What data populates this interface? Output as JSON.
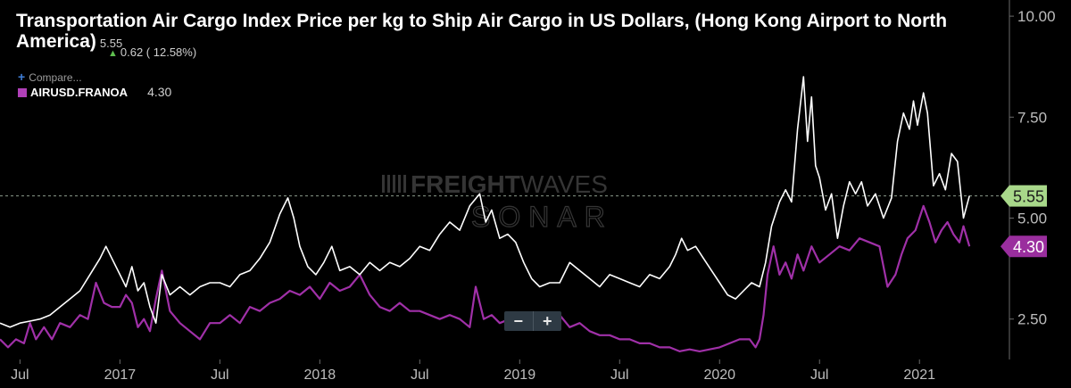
{
  "header": {
    "title": "Transportation Air Cargo Index Price per kg to Ship Air Cargo in US Dollars, (Hong Kong Airport to North America)",
    "current_value": "5.55",
    "change": "0.62 ( 12.58%)"
  },
  "legend": {
    "compare_label": "Compare...",
    "series_name": "AIRUSD.FRANOA",
    "series_value": "4.30"
  },
  "watermark": {
    "line1_bold": "FREIGHT",
    "line1_light": "WAVES",
    "line2": "SONAR"
  },
  "zoom": {
    "minus": "−",
    "plus": "+"
  },
  "colors": {
    "background": "#000000",
    "primary_line": "#ffffff",
    "secondary_line": "#a030a8",
    "primary_badge": "#a8d88a",
    "secondary_badge": "#9a2e9e"
  },
  "chart_data": {
    "type": "line",
    "x_range": [
      2016.4,
      2021.45
    ],
    "y_range": [
      1.5,
      10.4
    ],
    "y_ticks": [
      {
        "value": 2.5,
        "label": "2.50"
      },
      {
        "value": 5.0,
        "label": "5.00"
      },
      {
        "value": 7.5,
        "label": "7.50"
      },
      {
        "value": 10.0,
        "label": "10.00"
      }
    ],
    "x_ticks": [
      {
        "value": 2016.5,
        "label": "Jul"
      },
      {
        "value": 2017.0,
        "label": "2017"
      },
      {
        "value": 2017.5,
        "label": "Jul"
      },
      {
        "value": 2018.0,
        "label": "2018"
      },
      {
        "value": 2018.5,
        "label": "Jul"
      },
      {
        "value": 2019.0,
        "label": "2019"
      },
      {
        "value": 2019.5,
        "label": "Jul"
      },
      {
        "value": 2020.0,
        "label": "2020"
      },
      {
        "value": 2020.5,
        "label": "Jul"
      },
      {
        "value": 2021.0,
        "label": "2021"
      }
    ],
    "grid": false,
    "reference_line": {
      "value": 5.55
    },
    "series": [
      {
        "name": "",
        "color": "#ffffff",
        "last_label": "5.55",
        "points": [
          [
            2016.4,
            2.4
          ],
          [
            2016.45,
            2.3
          ],
          [
            2016.5,
            2.4
          ],
          [
            2016.55,
            2.45
          ],
          [
            2016.6,
            2.5
          ],
          [
            2016.65,
            2.6
          ],
          [
            2016.7,
            2.8
          ],
          [
            2016.75,
            3.0
          ],
          [
            2016.8,
            3.2
          ],
          [
            2016.85,
            3.6
          ],
          [
            2016.9,
            4.0
          ],
          [
            2016.93,
            4.3
          ],
          [
            2016.96,
            4.0
          ],
          [
            2017.0,
            3.6
          ],
          [
            2017.03,
            3.3
          ],
          [
            2017.06,
            3.8
          ],
          [
            2017.09,
            3.2
          ],
          [
            2017.12,
            3.4
          ],
          [
            2017.15,
            2.8
          ],
          [
            2017.18,
            2.4
          ],
          [
            2017.21,
            3.6
          ],
          [
            2017.25,
            3.1
          ],
          [
            2017.3,
            3.3
          ],
          [
            2017.35,
            3.1
          ],
          [
            2017.4,
            3.3
          ],
          [
            2017.45,
            3.4
          ],
          [
            2017.5,
            3.4
          ],
          [
            2017.55,
            3.3
          ],
          [
            2017.6,
            3.6
          ],
          [
            2017.65,
            3.7
          ],
          [
            2017.7,
            4.0
          ],
          [
            2017.75,
            4.4
          ],
          [
            2017.8,
            5.1
          ],
          [
            2017.84,
            5.5
          ],
          [
            2017.87,
            5.0
          ],
          [
            2017.9,
            4.3
          ],
          [
            2017.94,
            3.8
          ],
          [
            2017.98,
            3.6
          ],
          [
            2018.02,
            3.9
          ],
          [
            2018.06,
            4.3
          ],
          [
            2018.1,
            3.7
          ],
          [
            2018.15,
            3.8
          ],
          [
            2018.2,
            3.6
          ],
          [
            2018.25,
            3.9
          ],
          [
            2018.3,
            3.7
          ],
          [
            2018.35,
            3.9
          ],
          [
            2018.4,
            3.8
          ],
          [
            2018.45,
            4.0
          ],
          [
            2018.5,
            4.3
          ],
          [
            2018.55,
            4.2
          ],
          [
            2018.6,
            4.6
          ],
          [
            2018.65,
            4.9
          ],
          [
            2018.7,
            4.7
          ],
          [
            2018.75,
            5.3
          ],
          [
            2018.8,
            5.6
          ],
          [
            2018.83,
            4.9
          ],
          [
            2018.86,
            5.2
          ],
          [
            2018.9,
            4.5
          ],
          [
            2018.94,
            4.6
          ],
          [
            2018.98,
            4.4
          ],
          [
            2019.02,
            3.9
          ],
          [
            2019.06,
            3.5
          ],
          [
            2019.1,
            3.3
          ],
          [
            2019.15,
            3.4
          ],
          [
            2019.2,
            3.4
          ],
          [
            2019.25,
            3.9
          ],
          [
            2019.3,
            3.7
          ],
          [
            2019.35,
            3.5
          ],
          [
            2019.4,
            3.3
          ],
          [
            2019.45,
            3.6
          ],
          [
            2019.5,
            3.5
          ],
          [
            2019.55,
            3.4
          ],
          [
            2019.6,
            3.3
          ],
          [
            2019.65,
            3.6
          ],
          [
            2019.7,
            3.5
          ],
          [
            2019.75,
            3.8
          ],
          [
            2019.78,
            4.1
          ],
          [
            2019.81,
            4.5
          ],
          [
            2019.84,
            4.2
          ],
          [
            2019.88,
            4.3
          ],
          [
            2019.92,
            4.0
          ],
          [
            2019.96,
            3.7
          ],
          [
            2020.0,
            3.4
          ],
          [
            2020.04,
            3.1
          ],
          [
            2020.08,
            3.0
          ],
          [
            2020.12,
            3.2
          ],
          [
            2020.16,
            3.4
          ],
          [
            2020.2,
            3.3
          ],
          [
            2020.23,
            3.9
          ],
          [
            2020.26,
            4.8
          ],
          [
            2020.3,
            5.4
          ],
          [
            2020.33,
            5.7
          ],
          [
            2020.36,
            5.4
          ],
          [
            2020.39,
            7.2
          ],
          [
            2020.42,
            8.5
          ],
          [
            2020.44,
            6.9
          ],
          [
            2020.46,
            8.0
          ],
          [
            2020.48,
            6.3
          ],
          [
            2020.5,
            6.0
          ],
          [
            2020.53,
            5.2
          ],
          [
            2020.56,
            5.6
          ],
          [
            2020.59,
            4.5
          ],
          [
            2020.62,
            5.3
          ],
          [
            2020.65,
            5.9
          ],
          [
            2020.68,
            5.6
          ],
          [
            2020.71,
            5.9
          ],
          [
            2020.74,
            5.3
          ],
          [
            2020.78,
            5.6
          ],
          [
            2020.82,
            5.0
          ],
          [
            2020.86,
            5.5
          ],
          [
            2020.89,
            6.9
          ],
          [
            2020.92,
            7.6
          ],
          [
            2020.95,
            7.2
          ],
          [
            2020.97,
            7.9
          ],
          [
            2020.99,
            7.3
          ],
          [
            2021.02,
            8.1
          ],
          [
            2021.04,
            7.6
          ],
          [
            2021.07,
            5.8
          ],
          [
            2021.1,
            6.1
          ],
          [
            2021.13,
            5.7
          ],
          [
            2021.16,
            6.6
          ],
          [
            2021.19,
            6.4
          ],
          [
            2021.22,
            5.0
          ],
          [
            2021.25,
            5.55
          ]
        ]
      },
      {
        "name": "AIRUSD.FRANOA",
        "color": "#a030a8",
        "last_label": "4.30",
        "points": [
          [
            2016.4,
            2.0
          ],
          [
            2016.44,
            1.8
          ],
          [
            2016.48,
            2.0
          ],
          [
            2016.52,
            1.9
          ],
          [
            2016.55,
            2.4
          ],
          [
            2016.58,
            2.0
          ],
          [
            2016.62,
            2.3
          ],
          [
            2016.66,
            2.0
          ],
          [
            2016.7,
            2.4
          ],
          [
            2016.75,
            2.3
          ],
          [
            2016.8,
            2.6
          ],
          [
            2016.84,
            2.5
          ],
          [
            2016.88,
            3.4
          ],
          [
            2016.92,
            2.9
          ],
          [
            2016.96,
            2.8
          ],
          [
            2017.0,
            2.8
          ],
          [
            2017.03,
            3.1
          ],
          [
            2017.06,
            2.9
          ],
          [
            2017.09,
            2.3
          ],
          [
            2017.12,
            2.5
          ],
          [
            2017.15,
            2.2
          ],
          [
            2017.18,
            3.0
          ],
          [
            2017.21,
            3.7
          ],
          [
            2017.25,
            2.7
          ],
          [
            2017.3,
            2.4
          ],
          [
            2017.35,
            2.2
          ],
          [
            2017.4,
            2.0
          ],
          [
            2017.45,
            2.4
          ],
          [
            2017.5,
            2.4
          ],
          [
            2017.55,
            2.6
          ],
          [
            2017.6,
            2.4
          ],
          [
            2017.65,
            2.8
          ],
          [
            2017.7,
            2.7
          ],
          [
            2017.75,
            2.9
          ],
          [
            2017.8,
            3.0
          ],
          [
            2017.85,
            3.2
          ],
          [
            2017.9,
            3.1
          ],
          [
            2017.95,
            3.3
          ],
          [
            2018.0,
            3.0
          ],
          [
            2018.05,
            3.4
          ],
          [
            2018.1,
            3.2
          ],
          [
            2018.15,
            3.3
          ],
          [
            2018.2,
            3.6
          ],
          [
            2018.25,
            3.1
          ],
          [
            2018.3,
            2.8
          ],
          [
            2018.35,
            2.7
          ],
          [
            2018.4,
            2.9
          ],
          [
            2018.45,
            2.7
          ],
          [
            2018.5,
            2.7
          ],
          [
            2018.55,
            2.6
          ],
          [
            2018.6,
            2.5
          ],
          [
            2018.65,
            2.6
          ],
          [
            2018.7,
            2.5
          ],
          [
            2018.75,
            2.3
          ],
          [
            2018.78,
            3.3
          ],
          [
            2018.82,
            2.5
          ],
          [
            2018.86,
            2.6
          ],
          [
            2018.9,
            2.4
          ],
          [
            2018.95,
            2.5
          ],
          [
            2019.0,
            2.5
          ],
          [
            2019.05,
            2.6
          ],
          [
            2019.1,
            2.3
          ],
          [
            2019.15,
            2.4
          ],
          [
            2019.2,
            2.6
          ],
          [
            2019.25,
            2.3
          ],
          [
            2019.3,
            2.4
          ],
          [
            2019.35,
            2.2
          ],
          [
            2019.4,
            2.1
          ],
          [
            2019.45,
            2.1
          ],
          [
            2019.5,
            2.0
          ],
          [
            2019.55,
            2.0
          ],
          [
            2019.6,
            1.9
          ],
          [
            2019.65,
            1.9
          ],
          [
            2019.7,
            1.8
          ],
          [
            2019.75,
            1.8
          ],
          [
            2019.8,
            1.7
          ],
          [
            2019.85,
            1.75
          ],
          [
            2019.9,
            1.7
          ],
          [
            2019.95,
            1.75
          ],
          [
            2020.0,
            1.8
          ],
          [
            2020.05,
            1.9
          ],
          [
            2020.1,
            2.0
          ],
          [
            2020.15,
            2.0
          ],
          [
            2020.18,
            1.8
          ],
          [
            2020.2,
            2.0
          ],
          [
            2020.22,
            2.6
          ],
          [
            2020.24,
            3.6
          ],
          [
            2020.27,
            4.3
          ],
          [
            2020.3,
            3.6
          ],
          [
            2020.33,
            3.9
          ],
          [
            2020.36,
            3.5
          ],
          [
            2020.39,
            4.1
          ],
          [
            2020.42,
            3.7
          ],
          [
            2020.46,
            4.3
          ],
          [
            2020.5,
            3.9
          ],
          [
            2020.55,
            4.1
          ],
          [
            2020.6,
            4.3
          ],
          [
            2020.65,
            4.2
          ],
          [
            2020.7,
            4.5
          ],
          [
            2020.75,
            4.4
          ],
          [
            2020.8,
            4.3
          ],
          [
            2020.84,
            3.3
          ],
          [
            2020.88,
            3.6
          ],
          [
            2020.91,
            4.1
          ],
          [
            2020.94,
            4.5
          ],
          [
            2020.98,
            4.7
          ],
          [
            2021.02,
            5.3
          ],
          [
            2021.05,
            4.9
          ],
          [
            2021.08,
            4.4
          ],
          [
            2021.11,
            4.7
          ],
          [
            2021.14,
            4.9
          ],
          [
            2021.17,
            4.6
          ],
          [
            2021.2,
            4.4
          ],
          [
            2021.22,
            4.8
          ],
          [
            2021.25,
            4.3
          ]
        ]
      }
    ]
  }
}
